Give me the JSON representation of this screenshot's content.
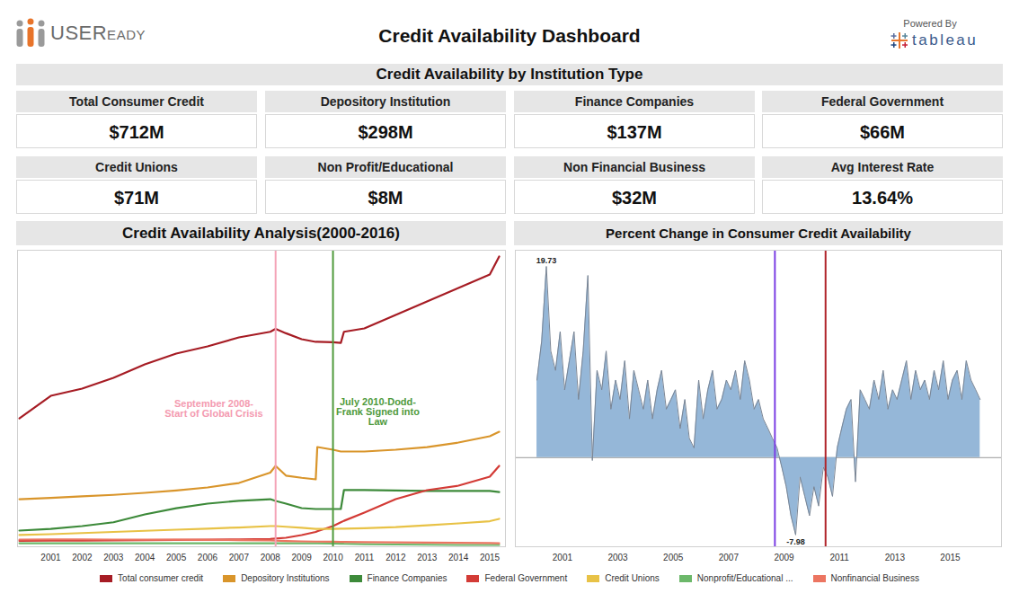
{
  "dashboard": {
    "logo": "USEReady",
    "title": "Credit Availability Dashboard",
    "powered_by": "Powered By",
    "tool": "tableau",
    "section_title": "Credit Availability by Institution Type",
    "tiles": [
      {
        "label": "Total Consumer Credit",
        "value": "$712M"
      },
      {
        "label": "Depository Institution",
        "value": "$298M"
      },
      {
        "label": "Finance Companies",
        "value": "$137M"
      },
      {
        "label": "Federal Government",
        "value": "$66M"
      },
      {
        "label": "Credit Unions",
        "value": "$71M"
      },
      {
        "label": "Non Profit/Educational",
        "value": "$8M"
      },
      {
        "label": "Non Financial Business",
        "value": "$32M"
      },
      {
        "label": "Avg Interest Rate",
        "value": "13.64%"
      }
    ]
  },
  "chart_data": [
    {
      "type": "line",
      "title": "Credit Availability Analysis(2000-2016)",
      "x": [
        2000.5,
        2001.5,
        2002.5,
        2003.5,
        2004.5,
        2005.5,
        2006.5,
        2007.5,
        2008.5,
        2008.67,
        2009,
        2009.5,
        2009.95,
        2010.0,
        2010.5,
        2010.75,
        2010.85,
        2011.5,
        2012.5,
        2013.5,
        2014.5,
        2015.5,
        2015.8
      ],
      "xlim": [
        2000.44,
        2016.0
      ],
      "xticks": [
        {
          "value": 2001.5,
          "label": "2001"
        },
        {
          "value": 2002.5,
          "label": "2002"
        },
        {
          "value": 2003.5,
          "label": "2003"
        },
        {
          "value": 2004.5,
          "label": "2004"
        },
        {
          "value": 2005.5,
          "label": "2005"
        },
        {
          "value": 2006.5,
          "label": "2006"
        },
        {
          "value": 2007.5,
          "label": "2007"
        },
        {
          "value": 2008.5,
          "label": "2008"
        },
        {
          "value": 2009.5,
          "label": "2009"
        },
        {
          "value": 2010.5,
          "label": "2010"
        },
        {
          "value": 2011.5,
          "label": "2011"
        },
        {
          "value": 2012.5,
          "label": "2012"
        },
        {
          "value": 2013.5,
          "label": "2013"
        },
        {
          "value": 2014.5,
          "label": "2014"
        },
        {
          "value": 2015.5,
          "label": "2015"
        }
      ],
      "ylim": [
        0,
        4000
      ],
      "tick_labels": "x",
      "grid": false,
      "legend": "bottom",
      "series": [
        {
          "name": "Total consumer credit",
          "color": "#a61c24",
          "values": [
            1733,
            2036,
            2133,
            2279,
            2460,
            2606,
            2703,
            2824,
            2900,
            2940,
            2880,
            2800,
            2764,
            2764,
            2760,
            2750,
            2900,
            2945,
            3127,
            3309,
            3491,
            3673,
            3915
          ]
        },
        {
          "name": "Depository Institutions",
          "color": "#d9952b",
          "values": [
            642,
            660,
            680,
            700,
            727,
            760,
            800,
            860,
            1000,
            1091,
            960,
            930,
            909,
            1345,
            1309,
            1285,
            1285,
            1285,
            1309,
            1345,
            1406,
            1491,
            1551
          ]
        },
        {
          "name": "Finance Companies",
          "color": "#3d8a3a",
          "values": [
            218,
            240,
            279,
            330,
            436,
            520,
            582,
            620,
            642,
            618,
            582,
            521,
            509,
            509,
            509,
            509,
            764,
            764,
            758,
            752,
            752,
            752,
            739
          ]
        },
        {
          "name": "Federal Government",
          "color": "#d33b36",
          "values": [
            80,
            82,
            84,
            86,
            90,
            92,
            95,
            100,
            105,
            110,
            121,
            158,
            200,
            210,
            279,
            330,
            350,
            461,
            642,
            764,
            824,
            945,
            1091
          ]
        },
        {
          "name": "Credit Unions",
          "color": "#e8c246",
          "values": [
            158,
            170,
            185,
            200,
            215,
            230,
            245,
            260,
            279,
            279,
            270,
            255,
            242,
            242,
            242,
            245,
            245,
            250,
            265,
            290,
            315,
            345,
            376
          ]
        },
        {
          "name": "Nonprofit/Educational ...",
          "color": "#6cb86a",
          "values": [
            48,
            48,
            48,
            48,
            48,
            48,
            48,
            48,
            48,
            48,
            48,
            48,
            48,
            48,
            45,
            42,
            40,
            36,
            30,
            27,
            24,
            24,
            24
          ]
        },
        {
          "name": "Nonfinancial Business",
          "color": "#ec7561",
          "values": [
            97,
            100,
            100,
            97,
            95,
            95,
            93,
            90,
            85,
            82,
            78,
            73,
            70,
            70,
            68,
            66,
            65,
            62,
            58,
            55,
            52,
            50,
            48
          ]
        }
      ],
      "annotations": [
        {
          "x": 2008.67,
          "color": "#f4a3b7"
        },
        {
          "x": 2010.5,
          "color": "#4f9a3c"
        },
        {
          "x": 2006.7,
          "y": 1855,
          "text": "September 2008-\nStart of Global Crisis",
          "color": "#f49ab0"
        },
        {
          "x": 2011.93,
          "y": 1818,
          "text": "July 2010-Dodd-\nFrank Signed into\nLaw",
          "color": "#4f9a3c"
        }
      ]
    },
    {
      "type": "area",
      "title": "Percent Change in Consumer Credit Availability",
      "x": [
        2000.08,
        2000.25,
        2000.42,
        2000.58,
        2000.75,
        2000.92,
        2001.08,
        2001.25,
        2001.42,
        2001.58,
        2001.75,
        2001.92,
        2002.08,
        2002.25,
        2002.42,
        2002.58,
        2002.75,
        2002.92,
        2003.08,
        2003.25,
        2003.42,
        2003.58,
        2003.75,
        2003.92,
        2004.08,
        2004.25,
        2004.42,
        2004.58,
        2004.75,
        2004.92,
        2005.08,
        2005.25,
        2005.42,
        2005.58,
        2005.75,
        2005.92,
        2006.08,
        2006.25,
        2006.42,
        2006.58,
        2006.75,
        2006.92,
        2007.08,
        2007.25,
        2007.42,
        2007.58,
        2007.75,
        2007.92,
        2008.08,
        2008.25,
        2008.42,
        2008.58,
        2008.75,
        2008.92,
        2009.08,
        2009.25,
        2009.42,
        2009.58,
        2009.75,
        2009.92,
        2010.08,
        2010.25,
        2010.42,
        2010.58,
        2010.75,
        2010.92,
        2011.08,
        2011.25,
        2011.42,
        2011.58,
        2011.75,
        2011.92,
        2012.08,
        2012.25,
        2012.42,
        2012.58,
        2012.75,
        2012.92,
        2013.08,
        2013.25,
        2013.42,
        2013.58,
        2013.75,
        2013.92,
        2014.08,
        2014.25,
        2014.42,
        2014.58,
        2014.75,
        2014.92,
        2015.08,
        2015.25,
        2015.42,
        2015.58,
        2015.75,
        2015.92,
        2016.08
      ],
      "xlim": [
        1999.3,
        2016.85
      ],
      "xticks": [
        2001,
        2003,
        2005,
        2007,
        2009,
        2011,
        2013,
        2015
      ],
      "ylim": [
        -9.2,
        21.4
      ],
      "yticks": [
        0
      ],
      "tick_labels": "x",
      "grid": true,
      "color": "#8fb3d6",
      "values": [
        8,
        12,
        19.73,
        11,
        9,
        13,
        7,
        10,
        13,
        6,
        11,
        18.8,
        -0.3,
        9,
        7,
        11,
        5,
        8,
        6,
        10,
        4,
        9,
        7,
        5,
        8,
        4,
        7,
        9,
        5,
        6,
        7,
        3,
        6,
        2,
        1,
        8,
        4,
        7,
        9,
        5,
        6,
        8,
        7,
        9,
        6,
        10,
        8,
        5,
        6,
        4,
        3,
        2,
        1,
        -1,
        -3,
        -6,
        -7.98,
        -2,
        -4,
        -6,
        -3,
        -5,
        -1,
        -2,
        -4,
        1,
        3,
        5,
        6,
        -2.5,
        7,
        6,
        5,
        8,
        6,
        9,
        5,
        7,
        6,
        8,
        10,
        6,
        9,
        7,
        8,
        6,
        9,
        7,
        10,
        6,
        8,
        9,
        6,
        10,
        8,
        7,
        6
      ],
      "annotations": [
        {
          "x": 2008.67,
          "color": "#7b3fe4"
        },
        {
          "x": 2010.5,
          "color": "#b0242a"
        },
        {
          "x": 2000.42,
          "y": 19.73,
          "text": "19.73"
        },
        {
          "x": 2009.42,
          "y": -7.98,
          "text": "-7.98"
        }
      ]
    }
  ]
}
